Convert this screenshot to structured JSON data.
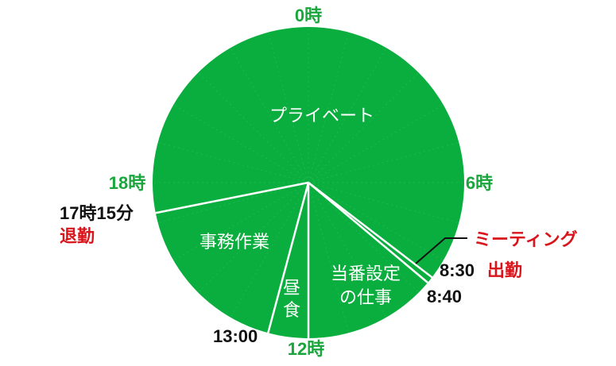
{
  "colors": {
    "pie": "#0aae3e",
    "divider": "#ffffff",
    "hour": "#1aa63c",
    "time": "#111111",
    "accent": "#d9141b",
    "grid": "#2fc15a"
  },
  "chart_data": {
    "type": "pie",
    "title": "",
    "clock": "24h",
    "segments": [
      {
        "label": "プライベート",
        "start": "17:15",
        "end": "8:30"
      },
      {
        "label": "ミーティング",
        "start": "8:30",
        "end": "8:40"
      },
      {
        "label": "当番設定の仕事",
        "start": "8:40",
        "end": "12:00"
      },
      {
        "label": "昼食",
        "start": "12:00",
        "end": "13:00"
      },
      {
        "label": "事務作業",
        "start": "13:00",
        "end": "17:15"
      }
    ],
    "hour_marks": [
      "0時",
      "6時",
      "12時",
      "18時"
    ],
    "time_annotations": [
      {
        "time": "8:30",
        "text": "8:30",
        "note": "出勤"
      },
      {
        "time": "8:40",
        "text": "8:40",
        "note": ""
      },
      {
        "time": "13:00",
        "text": "13:00",
        "note": ""
      },
      {
        "time": "17:15",
        "text": "17時15分",
        "note": "退勤"
      }
    ],
    "callout": "ミーティング"
  }
}
